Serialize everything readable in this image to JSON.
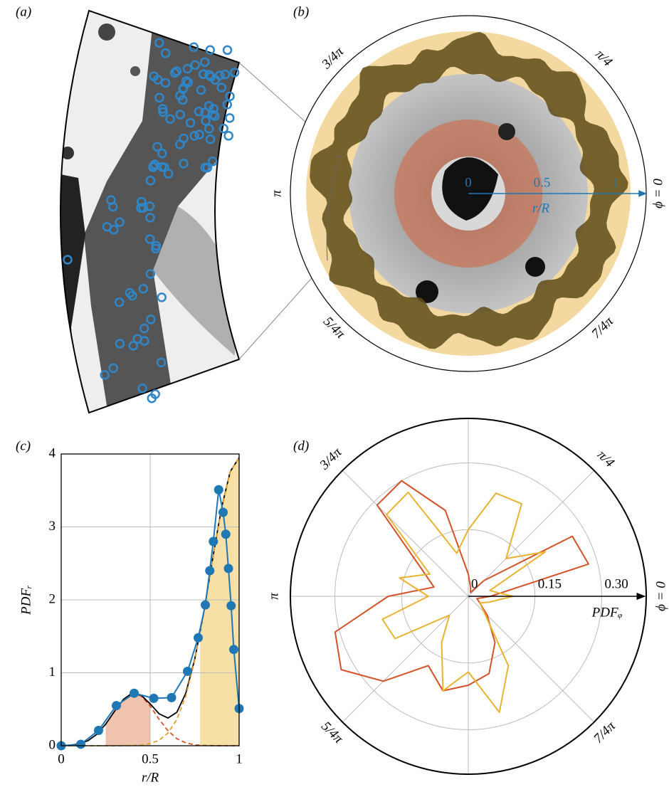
{
  "panel_labels": [
    "(a)",
    "(b)",
    "(c)",
    "(d)"
  ],
  "panel_b": {
    "angle_labels": [
      {
        "value": 0,
        "label": "ϕ = 0"
      },
      {
        "value": 45,
        "label": "π/4"
      },
      {
        "value": 135,
        "label": "3/4π"
      },
      {
        "value": 180,
        "label": "π"
      },
      {
        "value": 225,
        "label": "5/4π"
      },
      {
        "value": 315,
        "label": "7/4π"
      }
    ],
    "radial_ticks": [
      0,
      0.5,
      1
    ],
    "radial_label": "r/R"
  },
  "chart_data": [
    {
      "type": "line",
      "xlabel": "r/R",
      "ylabel": "PDFᵣ",
      "xlim": [
        0,
        1
      ],
      "ylim": [
        0,
        4
      ],
      "xticks": [
        0,
        0.5,
        1
      ],
      "yticks": [
        0,
        1,
        2,
        3,
        4
      ],
      "grid": true,
      "spans": [
        {
          "x": [
            0.25,
            0.5
          ],
          "color": "#efc3ad"
        },
        {
          "x": [
            0.78,
            1
          ],
          "color": "#f6e0a6"
        }
      ],
      "fill_under": 1,
      "series": [
        {
          "color": "#d4542a",
          "dash": true,
          "x": [
            0,
            0.05,
            0.1,
            0.15,
            0.2,
            0.25,
            0.3,
            0.35,
            0.4,
            0.45,
            0.5,
            0.55,
            0.6,
            0.65,
            0.7,
            0.75,
            0.8,
            0.85,
            0.9,
            0.95,
            1
          ],
          "values": [
            0.002,
            0.008,
            0.026,
            0.069,
            0.156,
            0.296,
            0.473,
            0.635,
            0.72,
            0.681,
            0.544,
            0.364,
            0.206,
            0.097,
            0.039,
            0.013,
            0.004,
            0.001,
            0,
            0,
            0
          ]
        },
        {
          "color": "#000000",
          "x": [
            0,
            0.05,
            0.1,
            0.15,
            0.2,
            0.25,
            0.3,
            0.35,
            0.4,
            0.45,
            0.5,
            0.55,
            0.6,
            0.65,
            0.7,
            0.75,
            0.8,
            0.85,
            0.9,
            0.95,
            1
          ],
          "values": [
            0.002,
            0.008,
            0.026,
            0.069,
            0.156,
            0.296,
            0.473,
            0.636,
            0.724,
            0.692,
            0.574,
            0.439,
            0.38,
            0.458,
            0.719,
            1.179,
            1.812,
            2.547,
            3.25,
            3.76,
            3.95
          ]
        },
        {
          "color": "#e0a030",
          "dash": true,
          "x": [
            0,
            0.05,
            0.1,
            0.15,
            0.2,
            0.25,
            0.3,
            0.35,
            0.4,
            0.45,
            0.5,
            0.55,
            0.6,
            0.65,
            0.7,
            0.75,
            0.8,
            0.85,
            0.9,
            0.95,
            1
          ],
          "values": [
            0,
            0,
            0,
            0,
            0,
            0,
            0,
            0.001,
            0.004,
            0.011,
            0.03,
            0.075,
            0.174,
            0.361,
            0.68,
            1.166,
            1.808,
            2.546,
            3.25,
            3.76,
            3.95
          ]
        },
        {
          "color": "#1f77b4",
          "marker": true,
          "x": [
            0,
            0.11,
            0.21,
            0.31,
            0.41,
            0.52,
            0.62,
            0.71,
            0.77,
            0.81,
            0.835,
            0.855,
            0.885,
            0.91,
            0.925,
            0.94,
            0.955,
            0.97,
            1
          ],
          "values": [
            0,
            0.02,
            0.21,
            0.55,
            0.72,
            0.65,
            0.66,
            1.02,
            1.48,
            1.93,
            2.4,
            2.8,
            3.51,
            3.2,
            2.9,
            2.43,
            1.92,
            1.32,
            0.51
          ]
        }
      ]
    },
    {
      "type": "polar",
      "rlabel": "PDFᵩ",
      "rlim": [
        0,
        0.4
      ],
      "rticks": [
        0,
        0.15,
        {
          "value": 0.3,
          "label": "0.30"
        }
      ],
      "thetaticks": [
        {
          "value": 0,
          "label": "ϕ = 0"
        },
        {
          "value": 45,
          "label": "π/4"
        },
        {
          "value": 90,
          "label": null
        },
        {
          "value": 135,
          "label": "3/4π"
        },
        {
          "value": 180,
          "label": "π"
        },
        {
          "value": 225,
          "label": "5/4π"
        },
        {
          "value": 270,
          "label": null
        },
        {
          "value": 315,
          "label": "7/4π"
        }
      ],
      "theta": [
        0,
        15,
        30,
        45,
        60,
        75,
        90,
        105,
        120,
        135,
        150,
        165,
        180,
        195,
        210,
        225,
        240,
        255,
        270,
        285,
        300,
        315,
        330,
        345
      ],
      "series": [
        {
          "color": "#d4522a",
          "values": [
            0.05,
            0.28,
            0.27,
            0.05,
            0.01,
            0.02,
            0.05,
            0.2,
            0.3,
            0.29,
            0.12,
            0.08,
            0.18,
            0.31,
            0.33,
            0.27,
            0.18,
            0.22,
            0.2,
            0.18,
            0.12,
            0.06,
            0.03,
            0.02
          ]
        },
        {
          "color": "#e8b330",
          "values": [
            0.1,
            0.05,
            0.2,
            0.12,
            0.24,
            0.24,
            0.15,
            0.1,
            0.27,
            0.26,
            0.1,
            0.16,
            0.09,
            0.2,
            0.19,
            0.06,
            0.12,
            0.22,
            0.17,
            0.27,
            0.18,
            0.05,
            0.03,
            0.05
          ]
        }
      ]
    }
  ]
}
